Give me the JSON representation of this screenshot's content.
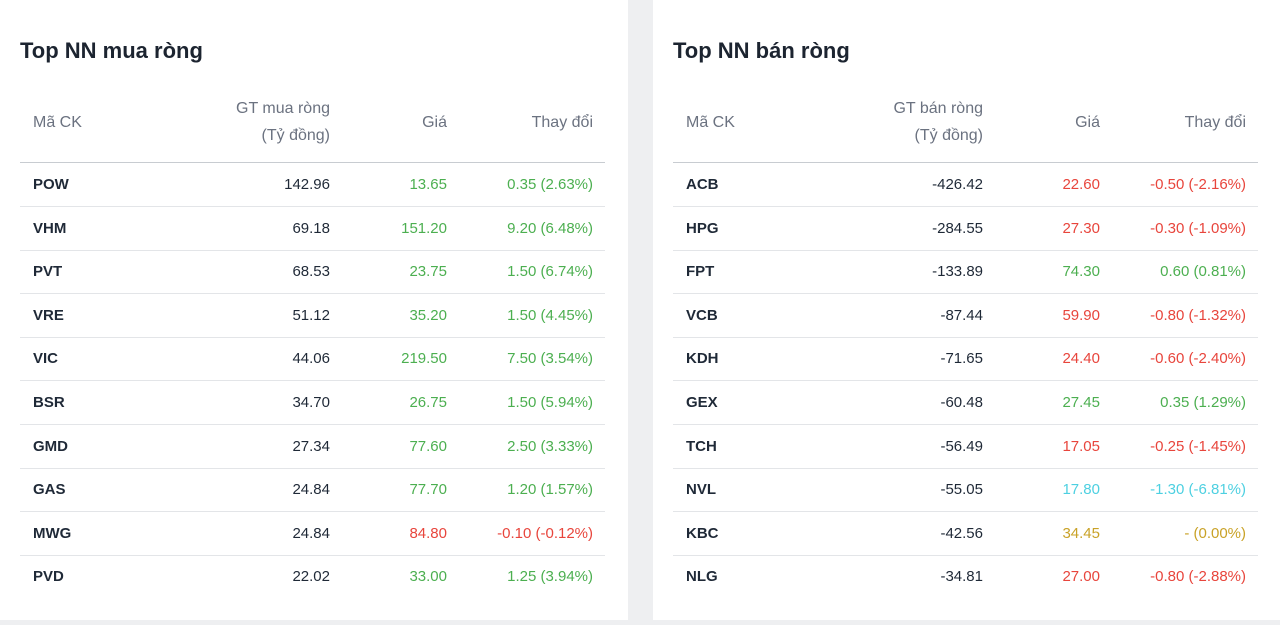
{
  "panels": [
    {
      "title": "Top NN mua ròng",
      "headers": {
        "code": "Mã CK",
        "value": [
          "GT mua ròng",
          "(Tỷ đồng)"
        ],
        "price": "Giá",
        "change": "Thay đổi"
      },
      "rows": [
        {
          "code": "POW",
          "value": "142.96",
          "price": "13.65",
          "change": "0.35 (2.63%)",
          "color": "#4caf50"
        },
        {
          "code": "VHM",
          "value": "69.18",
          "price": "151.20",
          "change": "9.20 (6.48%)",
          "color": "#4caf50"
        },
        {
          "code": "PVT",
          "value": "68.53",
          "price": "23.75",
          "change": "1.50 (6.74%)",
          "color": "#4caf50"
        },
        {
          "code": "VRE",
          "value": "51.12",
          "price": "35.20",
          "change": "1.50 (4.45%)",
          "color": "#4caf50"
        },
        {
          "code": "VIC",
          "value": "44.06",
          "price": "219.50",
          "change": "7.50 (3.54%)",
          "color": "#4caf50"
        },
        {
          "code": "BSR",
          "value": "34.70",
          "price": "26.75",
          "change": "1.50 (5.94%)",
          "color": "#4caf50"
        },
        {
          "code": "GMD",
          "value": "27.34",
          "price": "77.60",
          "change": "2.50 (3.33%)",
          "color": "#4caf50"
        },
        {
          "code": "GAS",
          "value": "24.84",
          "price": "77.70",
          "change": "1.20 (1.57%)",
          "color": "#4caf50"
        },
        {
          "code": "MWG",
          "value": "24.84",
          "price": "84.80",
          "change": "-0.10 (-0.12%)",
          "color": "#e8453c"
        },
        {
          "code": "PVD",
          "value": "22.02",
          "price": "33.00",
          "change": "1.25 (3.94%)",
          "color": "#4caf50"
        }
      ]
    },
    {
      "title": "Top NN bán ròng",
      "headers": {
        "code": "Mã CK",
        "value": [
          "GT bán ròng",
          "(Tỷ đồng)"
        ],
        "price": "Giá",
        "change": "Thay đổi"
      },
      "rows": [
        {
          "code": "ACB",
          "value": "-426.42",
          "price": "22.60",
          "change": "-0.50 (-2.16%)",
          "color": "#e8453c"
        },
        {
          "code": "HPG",
          "value": "-284.55",
          "price": "27.30",
          "change": "-0.30 (-1.09%)",
          "color": "#e8453c"
        },
        {
          "code": "FPT",
          "value": "-133.89",
          "price": "74.30",
          "change": "0.60 (0.81%)",
          "color": "#4caf50"
        },
        {
          "code": "VCB",
          "value": "-87.44",
          "price": "59.90",
          "change": "-0.80 (-1.32%)",
          "color": "#e8453c"
        },
        {
          "code": "KDH",
          "value": "-71.65",
          "price": "24.40",
          "change": "-0.60 (-2.40%)",
          "color": "#e8453c"
        },
        {
          "code": "GEX",
          "value": "-60.48",
          "price": "27.45",
          "change": "0.35 (1.29%)",
          "color": "#4caf50"
        },
        {
          "code": "TCH",
          "value": "-56.49",
          "price": "17.05",
          "change": "-0.25 (-1.45%)",
          "color": "#e8453c"
        },
        {
          "code": "NVL",
          "value": "-55.05",
          "price": "17.80",
          "change": "-1.30 (-6.81%)",
          "color": "#4dd0e1"
        },
        {
          "code": "KBC",
          "value": "-42.56",
          "price": "34.45",
          "change": "- (0.00%)",
          "color": "#c9a227"
        },
        {
          "code": "NLG",
          "value": "-34.81",
          "price": "27.00",
          "change": "-0.80 (-2.88%)",
          "color": "#e8453c"
        }
      ]
    }
  ]
}
